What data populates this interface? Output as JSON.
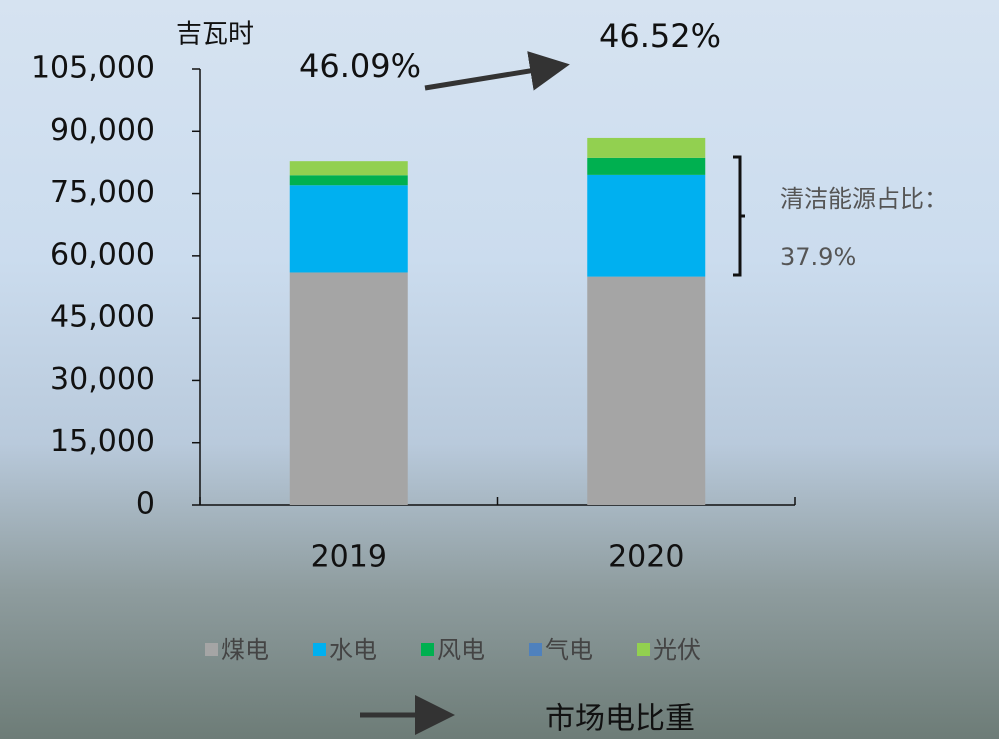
{
  "chart_data": {
    "type": "stacked-bar",
    "y_label": "吉瓦时",
    "categories": [
      "2019",
      "2020"
    ],
    "series": [
      {
        "name": "煤电",
        "color": "#a5a5a5",
        "values": [
          56000,
          55000
        ]
      },
      {
        "name": "水电",
        "color": "#00b0f0",
        "values": [
          21000,
          24500
        ]
      },
      {
        "name": "风电",
        "color": "#00b050",
        "values": [
          2400,
          4100
        ]
      },
      {
        "name": "气电",
        "color": "#4f81bd",
        "values": [
          0,
          0
        ]
      },
      {
        "name": "光伏",
        "color": "#92d050",
        "values": [
          3400,
          4800
        ]
      }
    ],
    "ylim": [
      0,
      105000
    ],
    "yticks": [
      0,
      {
        "value": 15000,
        "label": "15,000"
      },
      {
        "value": 30000,
        "label": "30,000"
      },
      {
        "value": 45000,
        "label": "45,000"
      },
      {
        "value": 60000,
        "label": "60,000"
      },
      {
        "value": 75000,
        "label": "75,000"
      },
      {
        "value": 90000,
        "label": "90,000"
      },
      {
        "value": 105000,
        "label": "105,000"
      }
    ],
    "share_2019": "46.09%",
    "share_2020": "46.52%",
    "clean_label": "清洁能源占比：",
    "clean_value": "37.9%",
    "arrow_legend": "市场电比重"
  }
}
